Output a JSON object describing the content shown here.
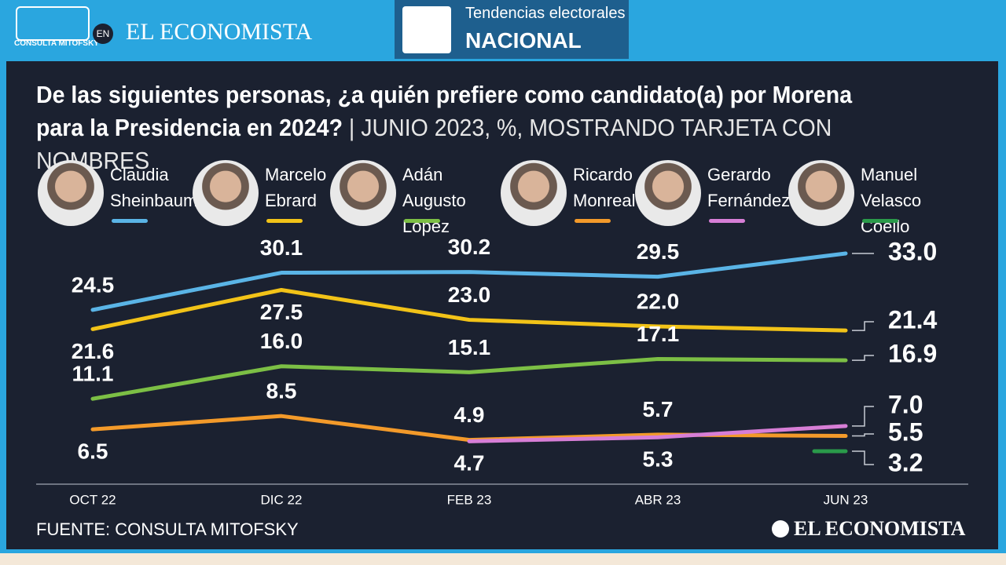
{
  "header": {
    "brand": "CONSULTA MITOFSKY",
    "en": "EN",
    "newspaper": "EL ECONOMISTA",
    "badge_line1": "Tendencias electorales",
    "badge_line2": "NACIONAL"
  },
  "chart_data": {
    "type": "line",
    "title": "De las siguientes personas, ¿a quién prefiere como candidato(a) por Morena para la Presidencia en 2024?",
    "subtitle": "JUNIO 2023, %, MOSTRANDO TARJETA CON NOMBRES",
    "categories": [
      "OCT 22",
      "DIC 22",
      "FEB 23",
      "ABR 23",
      "JUN 23"
    ],
    "series": [
      {
        "name": "Claudia Sheinbaum",
        "color": "#5ab4e6",
        "values": [
          24.5,
          30.1,
          30.2,
          29.5,
          33.0
        ],
        "value_labels": [
          "24.5",
          "30.1",
          "30.2",
          "29.5",
          "33.0"
        ]
      },
      {
        "name": "Marcelo Ebrard",
        "color": "#f2c318",
        "values": [
          21.6,
          27.5,
          23.0,
          22.0,
          21.4
        ],
        "value_labels": [
          "21.6",
          "27.5",
          "23.0",
          "22.0",
          "21.4"
        ]
      },
      {
        "name": "Adán Augusto López",
        "color": "#7cbf45",
        "values": [
          11.1,
          16.0,
          15.1,
          17.1,
          16.9
        ],
        "value_labels": [
          "11.1",
          "16.0",
          "15.1",
          "17.1",
          "16.9"
        ]
      },
      {
        "name": "Ricardo Monreal",
        "color": "#f39a2a",
        "values": [
          6.5,
          8.5,
          4.9,
          5.7,
          5.5
        ],
        "value_labels": [
          "6.5",
          "8.5",
          "4.9",
          "5.7",
          "5.5"
        ]
      },
      {
        "name": "Gerardo Fernández",
        "color": "#d77ed6",
        "values": [
          null,
          null,
          4.7,
          5.3,
          7.0
        ],
        "value_labels": [
          null,
          null,
          "4.7",
          "5.3",
          "7.0"
        ]
      },
      {
        "name": "Manuel Velasco Coello",
        "color": "#2a9a4a",
        "values": [
          null,
          null,
          null,
          null,
          3.2
        ],
        "value_labels": [
          null,
          null,
          null,
          null,
          "3.2"
        ]
      }
    ],
    "source": "FUENTE: CONSULTA MITOFSKY",
    "footer_logo": "EL ECONOMISTA"
  }
}
